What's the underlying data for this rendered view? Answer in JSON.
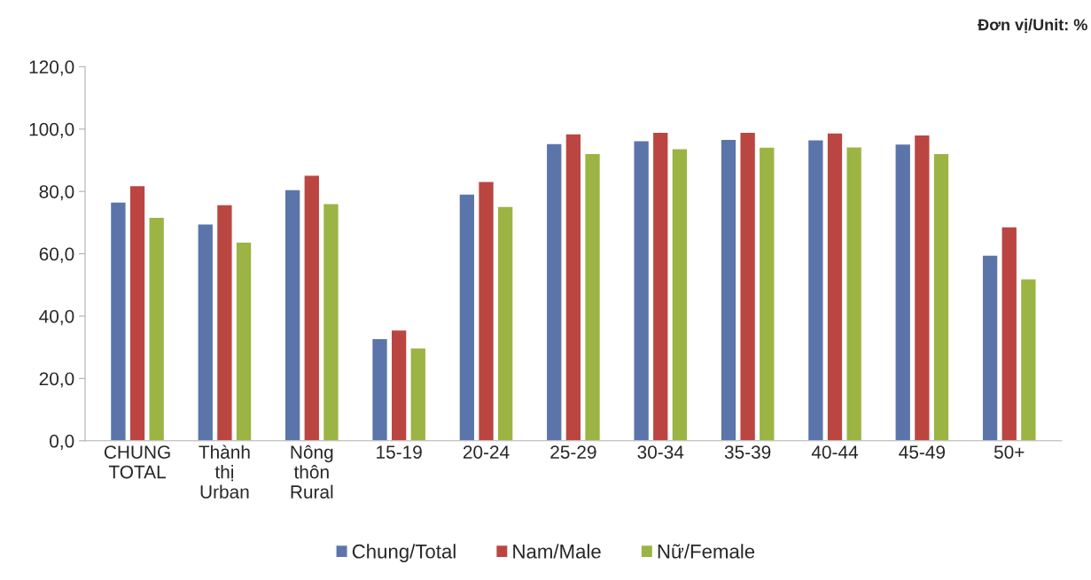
{
  "chart_data": {
    "type": "bar",
    "categories": [
      "CHUNG\nTOTAL",
      "Thành\nthị\nUrban",
      "Nông\nthôn\nRural",
      "15-19",
      "20-24",
      "25-29",
      "30-34",
      "35-39",
      "40-44",
      "45-49",
      "50+"
    ],
    "series": [
      {
        "name": "Chung/Total",
        "color": "#5b75ab",
        "values": [
          76.6,
          69.6,
          80.6,
          32.8,
          79.2,
          95.4,
          96.3,
          96.7,
          96.6,
          95.2,
          59.6
        ]
      },
      {
        "name": "Nam/Male",
        "color": "#bb4641",
        "values": [
          81.9,
          75.8,
          85.2,
          35.6,
          83.2,
          98.5,
          99.0,
          99.0,
          98.8,
          98.1,
          68.7
        ]
      },
      {
        "name": "Nữ/Female",
        "color": "#9bb444",
        "values": [
          71.7,
          63.8,
          76.1,
          29.8,
          75.2,
          92.2,
          93.7,
          94.2,
          94.3,
          92.2,
          52.0
        ]
      }
    ],
    "ylim": [
      0,
      120
    ],
    "yticks": [
      {
        "value": 0,
        "label": "0,0"
      },
      {
        "value": 20,
        "label": "20,0"
      },
      {
        "value": 40,
        "label": "40,0"
      },
      {
        "value": 60,
        "label": "60,0"
      },
      {
        "value": 80,
        "label": "80,0"
      },
      {
        "value": 100,
        "label": "100,0"
      },
      {
        "value": 120,
        "label": "120,0"
      }
    ],
    "annotations": [
      "Đơn vị/Unit: %"
    ],
    "legend": "bottom",
    "grid": false
  }
}
